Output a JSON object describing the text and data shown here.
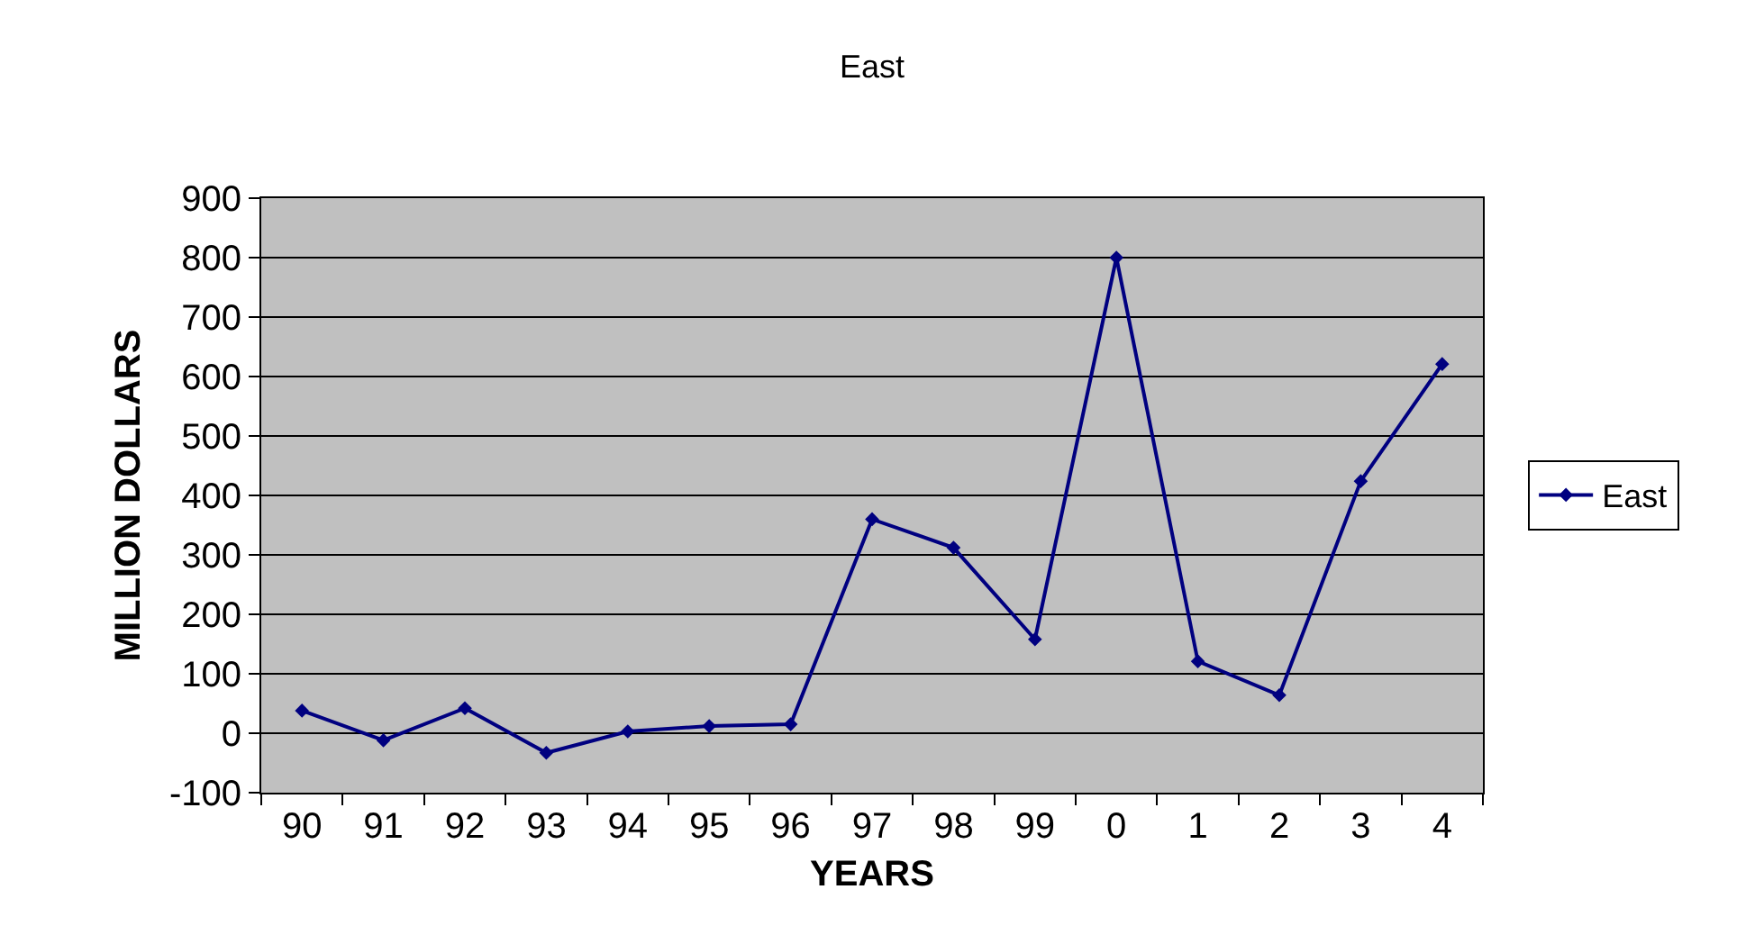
{
  "chart_data": {
    "type": "line",
    "title": "East",
    "xlabel": "YEARS",
    "ylabel": "MILLION DOLLARS",
    "categories": [
      "90",
      "91",
      "92",
      "93",
      "94",
      "95",
      "96",
      "97",
      "98",
      "99",
      "0",
      "1",
      "2",
      "3",
      "4"
    ],
    "series": [
      {
        "name": "East",
        "color": "#000080",
        "values": [
          38,
          -12,
          42,
          -33,
          3,
          12,
          15,
          360,
          312,
          158,
          800,
          121,
          64,
          424,
          621
        ]
      }
    ],
    "ylim": [
      -100,
      900
    ],
    "yticks": [
      -100,
      0,
      100,
      200,
      300,
      400,
      500,
      600,
      700,
      800,
      900
    ],
    "grid": "y",
    "legend": "right",
    "marker": "diamond",
    "line_style": "solid"
  }
}
